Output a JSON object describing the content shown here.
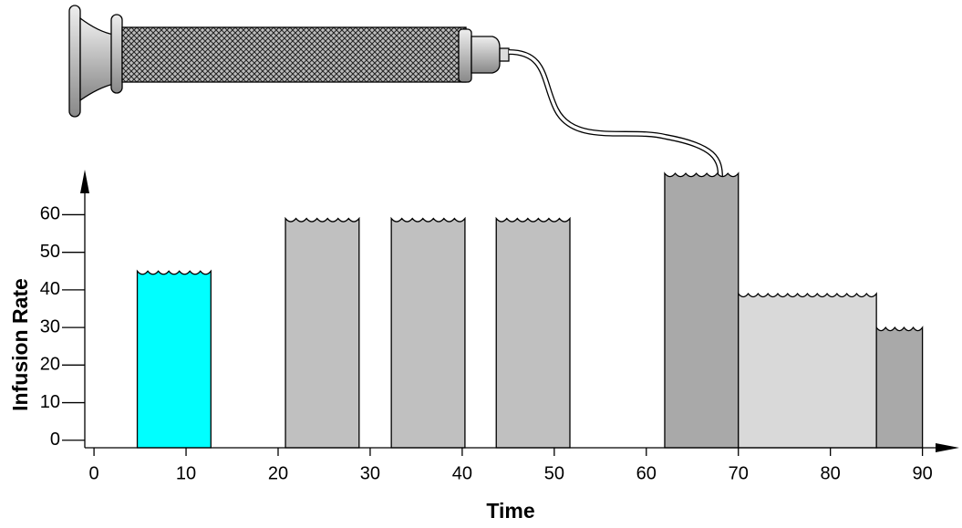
{
  "chart_data": {
    "type": "bar",
    "x_label": "Time",
    "y_label": "Infusion Rate",
    "x_start": [
      4.7,
      20.8,
      32.3,
      43.7,
      62,
      70,
      85
    ],
    "x_end": [
      12.7,
      28.8,
      40.3,
      51.7,
      70,
      85,
      90
    ],
    "values": [
      45,
      59,
      59,
      59,
      71,
      39,
      30
    ],
    "colors": [
      "#00ffff",
      "#c0c0c0",
      "#c0c0c0",
      "#c0c0c0",
      "#a9a9a9",
      "#d9d9d9",
      "#a9a9a9"
    ],
    "xlim": [
      -1,
      94
    ],
    "xticks": [
      0,
      10,
      20,
      30,
      40,
      50,
      60,
      70,
      80,
      90
    ],
    "ylim": [
      -2,
      72
    ],
    "yticks": [
      0,
      10,
      20,
      30,
      40,
      50,
      60
    ]
  }
}
